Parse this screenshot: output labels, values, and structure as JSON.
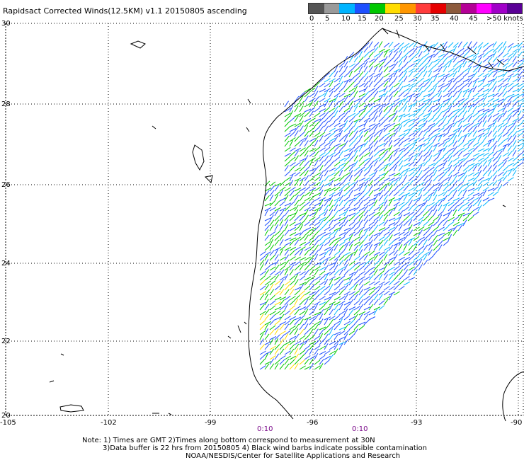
{
  "title": "Rapidsact Corrected Winds(12.5KM) v1.1 20150805 ascending",
  "legend": {
    "colors": [
      "#555555",
      "#9a9a9a",
      "#00b4ff",
      "#1e50ff",
      "#00c800",
      "#ffdc00",
      "#ff9600",
      "#ff3c3c",
      "#e60000",
      "#8c5a3c",
      "#b40096",
      "#ff00ff",
      "#a000c8",
      "#5a0096"
    ],
    "labels": [
      "0",
      "5",
      "10",
      "15",
      "20",
      "25",
      "30",
      "35",
      "40",
      "45",
      ">50 knots"
    ]
  },
  "axes": {
    "lat_labels": [
      "30",
      "28",
      "26",
      "24",
      "22",
      "20"
    ],
    "lon_labels": [
      "-105",
      "-102",
      "-99",
      "-96",
      "-93",
      "-90"
    ]
  },
  "time_labels": [
    "0:10",
    "0:10"
  ],
  "notes": {
    "line1": "Note: 1) Times are GMT 2)Times along bottom correspond to measurement at 30N",
    "line2": "3)Data buffer is 22 hrs from 20150805 4) Black wind barbs indicate possible contamination",
    "line3": "NOAA/NESDIS/Center for Satellite Applications and Research"
  }
}
